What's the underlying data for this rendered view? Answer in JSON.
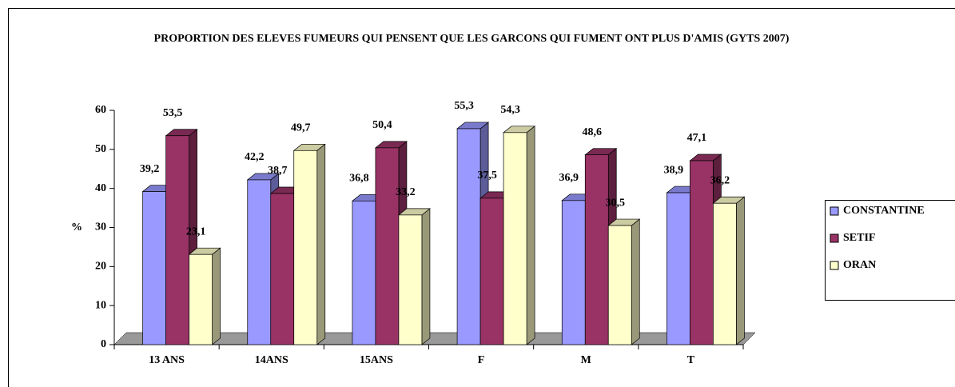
{
  "chart_data": {
    "type": "bar3d",
    "title": "PROPORTION DES ELEVES FUMEURS QUI PENSENT QUE LES GARCONS QUI FUMENT ONT PLUS D'AMIS (GYTS 2007)",
    "y_label": "%",
    "categories": [
      "13 ANS",
      "14ANS",
      "15ANS",
      "F",
      "M",
      "T"
    ],
    "series": [
      {
        "name": "CONSTANTINE",
        "color": "#9999ff",
        "values": [
          39.2,
          42.2,
          36.8,
          55.3,
          36.9,
          38.9
        ],
        "value_labels": [
          "39,2",
          "42,2",
          "36,8",
          "55,3",
          "36,9",
          "38,9"
        ]
      },
      {
        "name": "SETIF",
        "color": "#993366",
        "values": [
          53.5,
          38.7,
          50.4,
          37.5,
          48.6,
          47.1
        ],
        "value_labels": [
          "53,5",
          "38,7",
          "50,4",
          "37,5",
          "48,6",
          "47,1"
        ]
      },
      {
        "name": "ORAN",
        "color": "#ffffcc",
        "values": [
          23.1,
          49.7,
          33.2,
          54.3,
          30.5,
          36.2
        ],
        "value_labels": [
          "23,1",
          "49,7",
          "33,2",
          "54,3",
          "30,5",
          "36,2"
        ]
      }
    ],
    "ylim": [
      0,
      60
    ],
    "yticks": [
      0,
      10,
      20,
      30,
      40,
      50,
      60
    ],
    "legend": "right"
  }
}
